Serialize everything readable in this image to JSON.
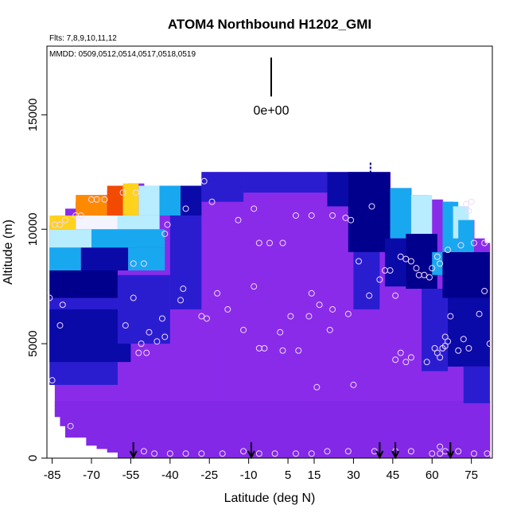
{
  "chart_data": {
    "type": "heatmap",
    "title": "ATOM4 Northbound H1202_GMI",
    "flights_label": "Flts: 7,8,9,10,11,12",
    "dates_label": "MMDD: 0509,0512,0514,0517,0518,0519",
    "xlabel": "Latitude (deg N)",
    "ylabel": "Altitude (m)",
    "xlim": [
      -87,
      83
    ],
    "ylim": [
      0,
      18000
    ],
    "x_ticks": [
      -85,
      -70,
      -55,
      -40,
      -25,
      -10,
      5,
      15,
      30,
      45,
      60,
      75
    ],
    "x_tick_labels": [
      "-85",
      "-70",
      "-55",
      "-40",
      "-25",
      "-10",
      "5",
      "15",
      "30",
      "45",
      "60",
      "75"
    ],
    "y_ticks": [
      0,
      5000,
      10000,
      15000
    ],
    "y_tick_labels": [
      "0",
      "5000",
      "10000",
      "15000"
    ],
    "scale_bar_label": "0e+00",
    "scale_bar_range": [
      15800,
      17500
    ],
    "colors": {
      "background_field": "#8a2bea",
      "low_bands": "#8228e6",
      "mid_blue": "#2a1dd0",
      "deep_blue": "#0a0aa8",
      "navy": "#00008c",
      "sky": "#18a8f0",
      "light_cyan": "#b8ecff",
      "pale": "#f4f4ff",
      "yellow": "#ffd21e",
      "orange": "#ff8a00",
      "red": "#f24a00",
      "circle": "#f0d8ff"
    },
    "field_columns": [
      {
        "x0": -86,
        "x1": -84,
        "top": 10200,
        "bottom": 3200
      },
      {
        "x0": -84,
        "x1": -82,
        "top": 10600,
        "bottom": 1800
      },
      {
        "x0": -82,
        "x1": -80,
        "top": 10600,
        "bottom": 1400
      },
      {
        "x0": -80,
        "x1": -76,
        "top": 10900,
        "bottom": 900
      },
      {
        "x0": -76,
        "x1": -72,
        "top": 11200,
        "bottom": 900
      },
      {
        "x0": -72,
        "x1": -68,
        "top": 11400,
        "bottom": 550
      },
      {
        "x0": -68,
        "x1": -64,
        "top": 11500,
        "bottom": 400
      },
      {
        "x0": -64,
        "x1": -60,
        "top": 11700,
        "bottom": 250
      },
      {
        "x0": -60,
        "x1": -56,
        "top": 11900,
        "bottom": 0
      },
      {
        "x0": -56,
        "x1": -50,
        "top": 12000,
        "bottom": 0
      },
      {
        "x0": -50,
        "x1": -44,
        "top": 11900,
        "bottom": 0
      },
      {
        "x0": -44,
        "x1": -36,
        "top": 11900,
        "bottom": 0
      },
      {
        "x0": -36,
        "x1": -28,
        "top": 11900,
        "bottom": 0
      },
      {
        "x0": -28,
        "x1": -20,
        "top": 12500,
        "bottom": 0
      },
      {
        "x0": -20,
        "x1": -12,
        "top": 12500,
        "bottom": 0
      },
      {
        "x0": -12,
        "x1": -4,
        "top": 12500,
        "bottom": 0
      },
      {
        "x0": -4,
        "x1": 4,
        "top": 12500,
        "bottom": 0
      },
      {
        "x0": 4,
        "x1": 12,
        "top": 12500,
        "bottom": 0
      },
      {
        "x0": 12,
        "x1": 20,
        "top": 12500,
        "bottom": 0
      },
      {
        "x0": 20,
        "x1": 28,
        "top": 12500,
        "bottom": 0
      },
      {
        "x0": 28,
        "x1": 36,
        "top": 12500,
        "bottom": 0
      },
      {
        "x0": 36,
        "x1": 44,
        "top": 12500,
        "bottom": 0
      },
      {
        "x0": 44,
        "x1": 52,
        "top": 11800,
        "bottom": 0
      },
      {
        "x0": 52,
        "x1": 58,
        "top": 11500,
        "bottom": 0
      },
      {
        "x0": 58,
        "x1": 64,
        "top": 11300,
        "bottom": 0
      },
      {
        "x0": 64,
        "x1": 68,
        "top": 11200,
        "bottom": 0
      },
      {
        "x0": 68,
        "x1": 72,
        "top": 11000,
        "bottom": 0
      },
      {
        "x0": 72,
        "x1": 76,
        "top": 10400,
        "bottom": 0
      },
      {
        "x0": 76,
        "x1": 80,
        "top": 9600,
        "bottom": 0
      },
      {
        "x0": 80,
        "x1": 82,
        "top": 9400,
        "bottom": 0
      }
    ],
    "value_patches": [
      {
        "x0": -86,
        "x1": -60,
        "y0": 3200,
        "y1": 7000,
        "level": "mid_blue"
      },
      {
        "x0": -86,
        "x1": -55,
        "y0": 4200,
        "y1": 6500,
        "level": "deep_blue"
      },
      {
        "x0": -86,
        "x1": -60,
        "y0": 7000,
        "y1": 8200,
        "level": "navy"
      },
      {
        "x0": -60,
        "x1": -40,
        "y0": 5000,
        "y1": 8000,
        "level": "mid_blue"
      },
      {
        "x0": -86,
        "x1": -74,
        "y0": 8200,
        "y1": 9200,
        "level": "sky"
      },
      {
        "x0": -74,
        "x1": -56,
        "y0": 8200,
        "y1": 9200,
        "level": "deep_blue"
      },
      {
        "x0": -56,
        "x1": -42,
        "y0": 8200,
        "y1": 9200,
        "level": "sky"
      },
      {
        "x0": -86,
        "x1": -70,
        "y0": 9200,
        "y1": 10000,
        "level": "light_cyan"
      },
      {
        "x0": -70,
        "x1": -42,
        "y0": 9200,
        "y1": 10000,
        "level": "sky"
      },
      {
        "x0": -86,
        "x1": -76,
        "y0": 10000,
        "y1": 10600,
        "level": "yellow"
      },
      {
        "x0": -76,
        "x1": -60,
        "y0": 10000,
        "y1": 10600,
        "level": "pale"
      },
      {
        "x0": -60,
        "x1": -44,
        "y0": 10000,
        "y1": 10600,
        "level": "light_cyan"
      },
      {
        "x0": -76,
        "x1": -64,
        "y0": 10600,
        "y1": 11500,
        "level": "orange"
      },
      {
        "x0": -64,
        "x1": -58,
        "y0": 10600,
        "y1": 11900,
        "level": "red"
      },
      {
        "x0": -58,
        "x1": -52,
        "y0": 10600,
        "y1": 12000,
        "level": "yellow"
      },
      {
        "x0": -52,
        "x1": -44,
        "y0": 10600,
        "y1": 11900,
        "level": "light_cyan"
      },
      {
        "x0": -44,
        "x1": -36,
        "y0": 10600,
        "y1": 11900,
        "level": "sky"
      },
      {
        "x0": -36,
        "x1": -28,
        "y0": 10600,
        "y1": 11900,
        "level": "deep_blue"
      },
      {
        "x0": -40,
        "x1": -28,
        "y0": 6500,
        "y1": 10600,
        "level": "mid_blue"
      },
      {
        "x0": -28,
        "x1": -12,
        "y0": 11200,
        "y1": 12500,
        "level": "mid_blue"
      },
      {
        "x0": -12,
        "x1": 20,
        "y0": 11600,
        "y1": 12500,
        "level": "mid_blue"
      },
      {
        "x0": 20,
        "x1": 36,
        "y0": 11000,
        "y1": 12500,
        "level": "deep_blue"
      },
      {
        "x0": 28,
        "x1": 44,
        "y0": 9000,
        "y1": 12500,
        "level": "navy"
      },
      {
        "x0": 30,
        "x1": 40,
        "y0": 6500,
        "y1": 9000,
        "level": "mid_blue"
      },
      {
        "x0": 44,
        "x1": 52,
        "y0": 9600,
        "y1": 11800,
        "level": "sky"
      },
      {
        "x0": 42,
        "x1": 50,
        "y0": 7500,
        "y1": 9600,
        "level": "deep_blue"
      },
      {
        "x0": 52,
        "x1": 60,
        "y0": 9800,
        "y1": 11500,
        "level": "light_cyan"
      },
      {
        "x0": 50,
        "x1": 62,
        "y0": 7400,
        "y1": 9800,
        "level": "navy"
      },
      {
        "x0": 56,
        "x1": 66,
        "y0": 3800,
        "y1": 7400,
        "level": "mid_blue"
      },
      {
        "x0": 60,
        "x1": 64,
        "y0": 8000,
        "y1": 9000,
        "level": "sky"
      },
      {
        "x0": 64,
        "x1": 70,
        "y0": 9000,
        "y1": 11200,
        "level": "sky"
      },
      {
        "x0": 68,
        "x1": 74,
        "y0": 9600,
        "y1": 11000,
        "level": "light_cyan"
      },
      {
        "x0": 70,
        "x1": 76,
        "y0": 9000,
        "y1": 10400,
        "level": "sky"
      },
      {
        "x0": 64,
        "x1": 82,
        "y0": 7000,
        "y1": 9000,
        "level": "navy"
      },
      {
        "x0": 66,
        "x1": 82,
        "y0": 4000,
        "y1": 7000,
        "level": "deep_blue"
      },
      {
        "x0": 72,
        "x1": 82,
        "y0": 2400,
        "y1": 4000,
        "level": "mid_blue"
      }
    ],
    "points": [
      [
        -84,
        10200
      ],
      [
        -82,
        10200
      ],
      [
        -80,
        10400
      ],
      [
        -76,
        10600
      ],
      [
        -74,
        10600
      ],
      [
        -70,
        11300
      ],
      [
        -68,
        11300
      ],
      [
        -65,
        11300
      ],
      [
        -58,
        11600
      ],
      [
        -53,
        11600
      ],
      [
        -27,
        12100
      ],
      [
        -34,
        10900
      ],
      [
        -24,
        11200
      ],
      [
        -41,
        10200
      ],
      [
        -42,
        9800
      ],
      [
        -14,
        10400
      ],
      [
        -8,
        10900
      ],
      [
        -6,
        9400
      ],
      [
        -2,
        9400
      ],
      [
        3,
        9400
      ],
      [
        8,
        10600
      ],
      [
        14,
        10600
      ],
      [
        22,
        10600
      ],
      [
        27,
        10500
      ],
      [
        29,
        10400
      ],
      [
        37,
        11000
      ],
      [
        -86,
        7000
      ],
      [
        -82,
        5800
      ],
      [
        -81,
        6700
      ],
      [
        -57,
        5800
      ],
      [
        -54,
        7000
      ],
      [
        -54,
        8500
      ],
      [
        -50,
        8500
      ],
      [
        -36,
        6900
      ],
      [
        -35,
        7400
      ],
      [
        -28,
        6200
      ],
      [
        -26,
        6100
      ],
      [
        -22,
        7200
      ],
      [
        -18,
        6500
      ],
      [
        -12,
        5600
      ],
      [
        -43,
        6100
      ],
      [
        -45,
        5100
      ],
      [
        -48,
        5500
      ],
      [
        -42,
        5300
      ],
      [
        -51,
        5000
      ],
      [
        -52,
        4600
      ],
      [
        -49,
        4600
      ],
      [
        -8,
        7500
      ],
      [
        -6,
        4800
      ],
      [
        -4,
        4800
      ],
      [
        2,
        5500
      ],
      [
        3,
        4700
      ],
      [
        6,
        6200
      ],
      [
        9,
        4700
      ],
      [
        13,
        6200
      ],
      [
        17,
        6700
      ],
      [
        14,
        7200
      ],
      [
        22,
        6500
      ],
      [
        21,
        5600
      ],
      [
        28,
        6300
      ],
      [
        32,
        8600
      ],
      [
        36,
        7100
      ],
      [
        40,
        7800
      ],
      [
        42,
        8200
      ],
      [
        44,
        8200
      ],
      [
        46,
        7100
      ],
      [
        48,
        8800
      ],
      [
        50,
        8700
      ],
      [
        52,
        8600
      ],
      [
        54,
        8300
      ],
      [
        55,
        8000
      ],
      [
        57,
        8000
      ],
      [
        59,
        7900
      ],
      [
        60,
        8300
      ],
      [
        62,
        8800
      ],
      [
        63,
        8500
      ],
      [
        66,
        9100
      ],
      [
        71,
        9300
      ],
      [
        76,
        9400
      ],
      [
        80,
        9400
      ],
      [
        72,
        5200
      ],
      [
        74,
        4800
      ],
      [
        78,
        6300
      ],
      [
        80,
        7300
      ],
      [
        82,
        5000
      ],
      [
        61,
        4800
      ],
      [
        62,
        4600
      ],
      [
        63,
        4400
      ],
      [
        64,
        4800
      ],
      [
        67,
        6200
      ],
      [
        46,
        4300
      ],
      [
        48,
        4600
      ],
      [
        50,
        4200
      ],
      [
        52,
        4400
      ],
      [
        58,
        4200
      ],
      [
        65,
        5300
      ],
      [
        66,
        5100
      ],
      [
        65,
        4900
      ],
      [
        70,
        4700
      ],
      [
        75,
        11200
      ],
      [
        74,
        10800
      ],
      [
        73,
        11100
      ],
      [
        16,
        3100
      ],
      [
        30,
        3200
      ],
      [
        -85,
        3400
      ],
      [
        -78,
        1400
      ],
      [
        -50,
        300
      ],
      [
        -46,
        200
      ],
      [
        -40,
        200
      ],
      [
        -34,
        200
      ],
      [
        -28,
        200
      ],
      [
        -20,
        200
      ],
      [
        -12,
        300
      ],
      [
        -6,
        200
      ],
      [
        0,
        200
      ],
      [
        8,
        200
      ],
      [
        14,
        200
      ],
      [
        20,
        300
      ],
      [
        28,
        300
      ],
      [
        38,
        300
      ],
      [
        46,
        300
      ],
      [
        52,
        300
      ],
      [
        60,
        200
      ],
      [
        63,
        200
      ],
      [
        65,
        300
      ],
      [
        70,
        300
      ],
      [
        76,
        200
      ],
      [
        81,
        200
      ],
      [
        63,
        500
      ]
    ],
    "arrow_latitudes": [
      -54,
      -9,
      40,
      46,
      67
    ],
    "dash_marker": {
      "x": 36.5,
      "y": 12700
    }
  }
}
